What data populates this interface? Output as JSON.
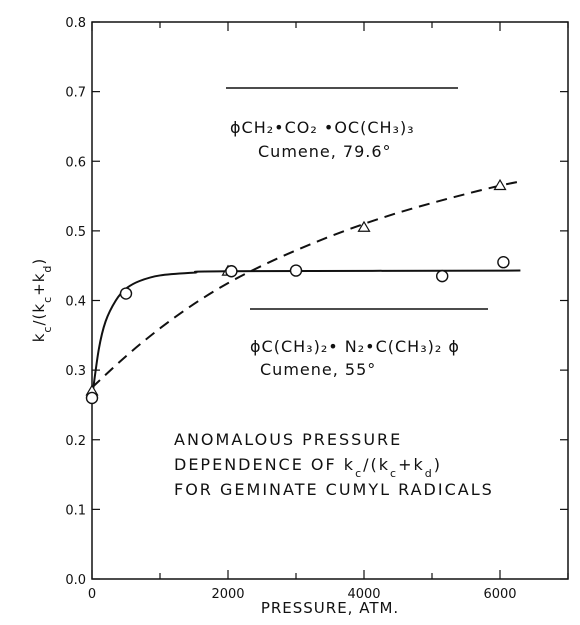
{
  "chart_data": {
    "type": "scatter",
    "xlabel": "PRESSURE, ATM.",
    "ylabel": "k_c/(k_c+k_d)",
    "xlim": [
      0,
      7000
    ],
    "ylim": [
      0,
      0.8
    ],
    "x_ticks": [
      0,
      2000,
      4000,
      6000
    ],
    "x_tick_labels": [
      "0",
      "2000",
      "4000",
      "6000"
    ],
    "y_ticks": [
      0.0,
      0.1,
      0.2,
      0.3,
      0.4,
      0.5,
      0.6,
      0.7,
      0.8
    ],
    "y_tick_labels": [
      "0.0",
      "0.1",
      "0.2",
      "0.3",
      "0.4",
      "0.5",
      "0.6",
      "0.7",
      "0.8"
    ],
    "grid": false,
    "series": [
      {
        "legend_formula": "ϕCH₂•CO₂ •OC(CH₃)₃",
        "legend_condition": "Cumene, 79.6°",
        "marker": "triangle",
        "line": "dashed",
        "points": [
          {
            "x": 0,
            "y": 0.27
          },
          {
            "x": 2000,
            "y": 0.442
          },
          {
            "x": 4000,
            "y": 0.505
          },
          {
            "x": 6000,
            "y": 0.565
          }
        ],
        "curve": [
          {
            "x": 0,
            "y": 0.275
          },
          {
            "x": 500,
            "y": 0.32
          },
          {
            "x": 1000,
            "y": 0.36
          },
          {
            "x": 1500,
            "y": 0.395
          },
          {
            "x": 2000,
            "y": 0.425
          },
          {
            "x": 2500,
            "y": 0.45
          },
          {
            "x": 3000,
            "y": 0.472
          },
          {
            "x": 3500,
            "y": 0.492
          },
          {
            "x": 4000,
            "y": 0.51
          },
          {
            "x": 4500,
            "y": 0.526
          },
          {
            "x": 5000,
            "y": 0.54
          },
          {
            "x": 5500,
            "y": 0.553
          },
          {
            "x": 6000,
            "y": 0.565
          },
          {
            "x": 6300,
            "y": 0.571
          }
        ]
      },
      {
        "legend_formula": "ϕC(CH₃)₂• N₂•C(CH₃)₂ ϕ",
        "legend_condition": "Cumene, 55°",
        "marker": "circle",
        "line": "solid",
        "points": [
          {
            "x": 0,
            "y": 0.26
          },
          {
            "x": 500,
            "y": 0.41
          },
          {
            "x": 2050,
            "y": 0.442
          },
          {
            "x": 3000,
            "y": 0.443
          },
          {
            "x": 5150,
            "y": 0.435
          },
          {
            "x": 6050,
            "y": 0.455
          }
        ],
        "curve": [
          {
            "x": 0,
            "y": 0.26
          },
          {
            "x": 100,
            "y": 0.33
          },
          {
            "x": 200,
            "y": 0.37
          },
          {
            "x": 350,
            "y": 0.4
          },
          {
            "x": 500,
            "y": 0.417
          },
          {
            "x": 700,
            "y": 0.428
          },
          {
            "x": 1000,
            "y": 0.436
          },
          {
            "x": 1500,
            "y": 0.44
          },
          {
            "x": 2000,
            "y": 0.442
          },
          {
            "x": 6300,
            "y": 0.443
          }
        ]
      }
    ],
    "annotation": [
      "ANOMALOUS  PRESSURE",
      "DEPENDENCE  OF  k_c/(k_c+k_d)",
      "FOR GEMINATE CUMYL RADICALS"
    ]
  }
}
